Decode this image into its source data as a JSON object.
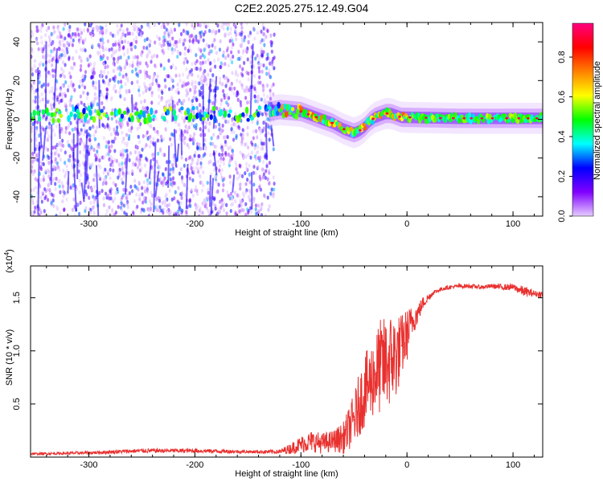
{
  "title": "C2E2.2025.275.12.49.G04",
  "chart_data": [
    {
      "type": "heatmap",
      "xlabel": "Height of straight line (km)",
      "ylabel": "Frequency (Hz)",
      "xlim": [
        -355,
        128
      ],
      "ylim": [
        -50,
        50
      ],
      "xticks": [
        -300,
        -200,
        -100,
        0,
        100
      ],
      "yticks": [
        -40,
        -20,
        0,
        20,
        40
      ],
      "colorbar": {
        "label": "Normalized spectral amplitude",
        "range": [
          0,
          0.97
        ],
        "ticks": [
          0.0,
          0.2,
          0.4,
          0.6,
          0.8
        ],
        "tick_labels": [
          "0.0",
          "0.2",
          "0.4",
          "0.6",
          "0.8"
        ],
        "colors": [
          "#e6ccff",
          "#8000ff",
          "#0000ff",
          "#00ffff",
          "#00ff00",
          "#ffff00",
          "#ff8000",
          "#ff0000",
          "#ff0080"
        ]
      },
      "ridge_frequency": {
        "x": [
          -355,
          -300,
          -250,
          -200,
          -150,
          -120,
          -100,
          -90,
          -80,
          -70,
          -60,
          -50,
          -45,
          -40,
          -35,
          -30,
          -25,
          -20,
          -15,
          -10,
          -5,
          0,
          50,
          100,
          128
        ],
        "y": [
          1,
          3,
          2,
          3,
          2,
          5,
          4,
          2,
          0,
          -2,
          -5,
          -7,
          -6,
          -4,
          -1,
          1,
          2,
          3,
          3,
          2,
          1,
          1,
          0.5,
          0.5,
          0.5
        ]
      },
      "scatter_extent_km": [
        -355,
        -125
      ],
      "grid": false
    },
    {
      "type": "line",
      "xlabel": "Height of straight line (km)",
      "ylabel": "SNR (10 * v/v)",
      "y_multiplier": "(x10^4)",
      "xlim": [
        -355,
        128
      ],
      "ylim": [
        0,
        1.8
      ],
      "xticks": [
        -300,
        -200,
        -100,
        0,
        100
      ],
      "yticks": [
        0.5,
        1.0,
        1.5
      ],
      "ytick_labels": [
        "0.5",
        "1.0",
        "1.5"
      ],
      "series": [
        {
          "color": "#e8312f",
          "x": [
            -355,
            -300,
            -250,
            -200,
            -150,
            -120,
            -110,
            -100,
            -90,
            -80,
            -70,
            -60,
            -50,
            -45,
            -40,
            -35,
            -30,
            -25,
            -20,
            -15,
            -10,
            -5,
            0,
            5,
            10,
            15,
            20,
            25,
            30,
            35,
            40,
            50,
            60,
            70,
            80,
            90,
            100,
            105,
            110,
            115,
            120,
            128
          ],
          "y": [
            0.03,
            0.04,
            0.06,
            0.06,
            0.05,
            0.05,
            0.08,
            0.12,
            0.15,
            0.13,
            0.15,
            0.18,
            0.35,
            0.5,
            0.62,
            0.7,
            0.78,
            0.85,
            0.88,
            0.92,
            0.95,
            1.05,
            1.15,
            1.28,
            1.35,
            1.45,
            1.5,
            1.55,
            1.57,
            1.59,
            1.6,
            1.61,
            1.61,
            1.6,
            1.61,
            1.6,
            1.6,
            1.58,
            1.56,
            1.55,
            1.54,
            1.53
          ],
          "noise": [
            0.01,
            0.015,
            0.02,
            0.02,
            0.015,
            0.02,
            0.05,
            0.08,
            0.1,
            0.1,
            0.1,
            0.15,
            0.25,
            0.3,
            0.35,
            0.35,
            0.4,
            0.45,
            0.45,
            0.45,
            0.4,
            0.3,
            0.25,
            0.15,
            0.1,
            0.06,
            0.04,
            0.02,
            0.02,
            0.02,
            0.02,
            0.02,
            0.02,
            0.02,
            0.02,
            0.03,
            0.03,
            0.04,
            0.05,
            0.04,
            0.03,
            0.03
          ]
        }
      ]
    }
  ]
}
